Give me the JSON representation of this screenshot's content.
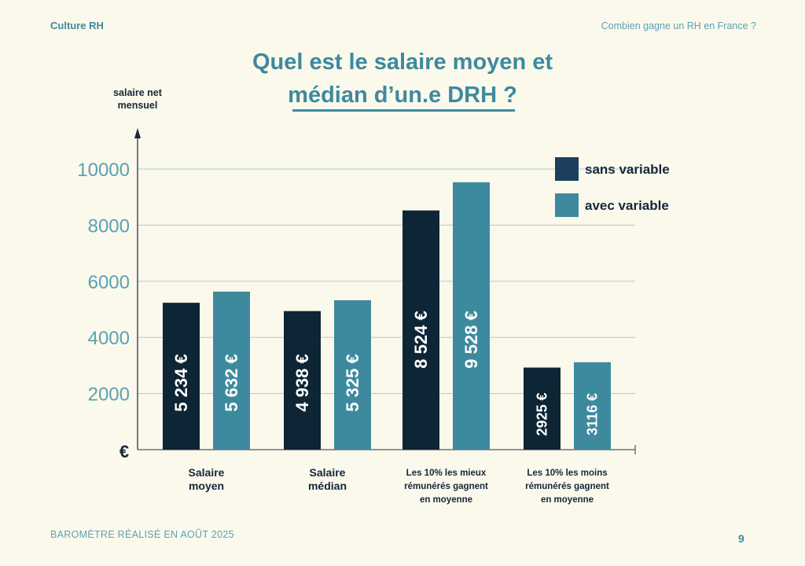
{
  "header": {
    "brand": "Culture RH",
    "section": "Combien gagne un RH en France ?"
  },
  "title_line1": "Quel est le salaire moyen et",
  "title_line2": "médian d’un.e DRH ?",
  "footer": {
    "note": "BAROMÈTRE RÉALISÉ EN AOÛT 2025",
    "page": "9"
  },
  "chart_data": {
    "type": "bar",
    "title": "Quel est le salaire moyen et médian d’un.e DRH ?",
    "ylabel": "salaire net mensuel",
    "yunit": "€",
    "ylim": [
      0,
      10000
    ],
    "yticks": [
      "2000",
      "4000",
      "6000",
      "8000",
      "10000"
    ],
    "grid": true,
    "legend_position": "top-right",
    "categories": [
      [
        "Salaire",
        "moyen"
      ],
      [
        "Salaire",
        "médian"
      ],
      [
        "Les 10% les mieux",
        "rémunérés gagnent",
        "en moyenne"
      ],
      [
        "Les 10% les moins",
        "rémunérés gagnent",
        "en moyenne"
      ]
    ],
    "series": [
      {
        "name": "sans variable",
        "color": "#0d2535",
        "legend_color": "#1b3f5c",
        "values": [
          5234,
          4938,
          8524,
          2925
        ],
        "labels": [
          "5 234 €",
          "4 938 €",
          "8 524 €",
          "2925 €"
        ]
      },
      {
        "name": "avec variable",
        "color": "#3d8a9e",
        "legend_color": "#3d8a9e",
        "values": [
          5632,
          5325,
          9528,
          3116
        ],
        "labels": [
          "5 632 €",
          "5 325 €",
          "9 528 €",
          "3116 €"
        ]
      }
    ]
  }
}
